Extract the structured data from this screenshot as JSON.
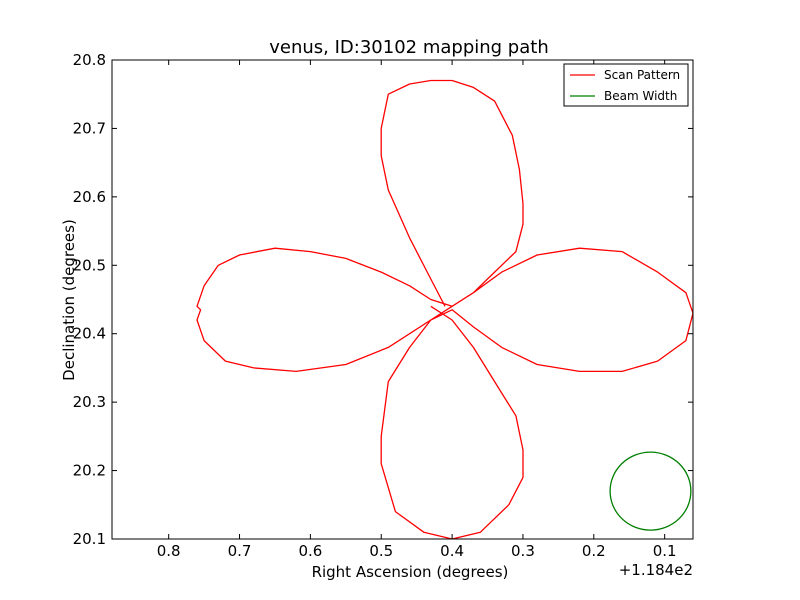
{
  "chart_data": {
    "type": "line",
    "title": "venus, ID:30102 mapping path",
    "xlabel": "Right Ascension (degrees)",
    "ylabel": "Declination (degrees)",
    "x_offset_label": "+1.184e2",
    "x_inverted": true,
    "xlim": [
      0.88,
      0.06
    ],
    "ylim": [
      20.1,
      20.8
    ],
    "x_ticks": [
      0.8,
      0.7,
      0.6,
      0.5,
      0.4,
      0.3,
      0.2,
      0.1
    ],
    "x_tick_labels": [
      "0.8",
      "0.7",
      "0.6",
      "0.5",
      "0.4",
      "0.3",
      "0.2",
      "0.1"
    ],
    "y_ticks": [
      20.1,
      20.2,
      20.3,
      20.4,
      20.5,
      20.6,
      20.7,
      20.8
    ],
    "y_tick_labels": [
      "20.1",
      "20.2",
      "20.3",
      "20.4",
      "20.5",
      "20.6",
      "20.7",
      "20.8"
    ],
    "grid": false,
    "legend_position": "top-right",
    "series": [
      {
        "name": "Scan Pattern",
        "color": "#ff0000",
        "x": [
          0.41,
          0.43,
          0.46,
          0.49,
          0.5,
          0.5,
          0.49,
          0.46,
          0.43,
          0.4,
          0.37,
          0.34,
          0.315,
          0.305,
          0.3,
          0.3,
          0.31,
          0.34,
          0.37,
          0.4,
          0.43,
          0.46,
          0.5,
          0.55,
          0.6,
          0.65,
          0.7,
          0.73,
          0.75,
          0.76,
          0.755,
          0.76,
          0.75,
          0.72,
          0.68,
          0.62,
          0.55,
          0.49,
          0.43,
          0.4,
          0.37,
          0.33,
          0.28,
          0.22,
          0.16,
          0.11,
          0.07,
          0.06,
          0.07,
          0.11,
          0.16,
          0.22,
          0.28,
          0.33,
          0.37,
          0.4,
          0.43,
          0.46,
          0.49,
          0.5,
          0.5,
          0.48,
          0.44,
          0.4,
          0.36,
          0.32,
          0.3,
          0.3,
          0.31,
          0.34,
          0.37,
          0.4,
          0.43
        ],
        "y": [
          20.44,
          20.48,
          20.54,
          20.61,
          20.66,
          20.7,
          20.75,
          20.765,
          20.77,
          20.77,
          20.76,
          20.74,
          20.69,
          20.64,
          20.59,
          20.56,
          20.52,
          20.49,
          20.46,
          20.44,
          20.45,
          20.47,
          20.49,
          20.51,
          20.52,
          20.525,
          20.515,
          20.5,
          20.47,
          20.44,
          20.435,
          20.42,
          20.39,
          20.36,
          20.35,
          20.345,
          20.355,
          20.38,
          20.42,
          20.44,
          20.46,
          20.49,
          20.515,
          20.525,
          20.52,
          20.49,
          20.46,
          20.43,
          20.39,
          20.36,
          20.345,
          20.345,
          20.355,
          20.38,
          20.41,
          20.435,
          20.42,
          20.38,
          20.33,
          20.25,
          20.21,
          20.14,
          20.11,
          20.1,
          20.11,
          20.15,
          20.19,
          20.23,
          20.28,
          20.33,
          20.38,
          20.42,
          20.44
        ]
      },
      {
        "name": "Beam Width",
        "color": "#007f00",
        "center": [
          0.12,
          20.17
        ],
        "radius": 0.057
      }
    ]
  }
}
